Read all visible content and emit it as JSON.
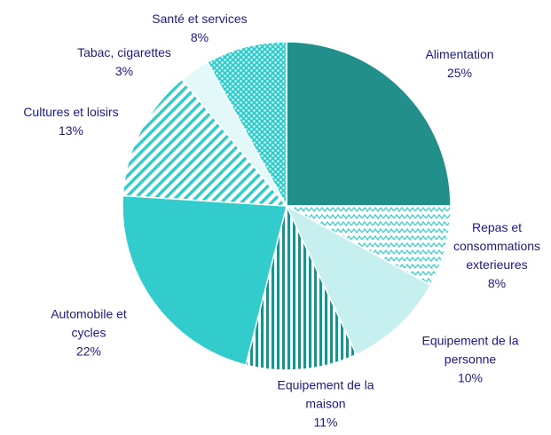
{
  "chart_data": {
    "type": "pie",
    "categories": [
      "Alimentation",
      "Repas et consommations exterieures",
      "Equipement de la personne",
      "Equipement de la maison",
      "Automobile et cycles",
      "Cultures et loisirs",
      "Tabac, cigarettes",
      "Santé et services"
    ],
    "values": [
      25,
      8,
      10,
      11,
      22,
      13,
      3,
      8
    ],
    "value_labels": [
      "25%",
      "8%",
      "10%",
      "11%",
      "22%",
      "13%",
      "3%",
      "8%"
    ],
    "colors": [
      "#238f8a",
      "#ffffff",
      "#c5f0ef",
      "#ffffff",
      "#33cccc",
      "#ffffff",
      "#e3f8f8",
      "#33cccc"
    ]
  }
}
